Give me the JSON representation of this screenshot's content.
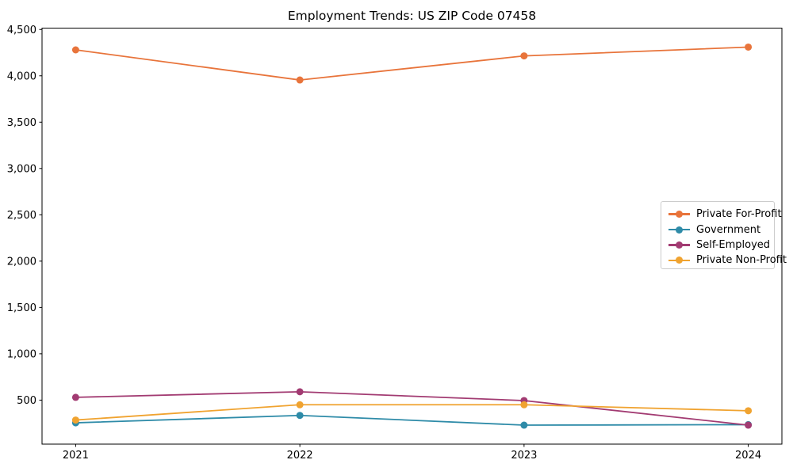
{
  "chart_data": {
    "type": "line",
    "title": "Employment Trends: US ZIP Code 07458",
    "categories": [
      "2021",
      "2022",
      "2023",
      "2024"
    ],
    "x": [
      2021,
      2022,
      2023,
      2024
    ],
    "series": [
      {
        "name": "Private For-Profit",
        "color": "#E8743B",
        "values": [
          4280,
          3955,
          4215,
          4310
        ]
      },
      {
        "name": "Government",
        "color": "#2E8BA8",
        "values": [
          255,
          335,
          230,
          235
        ]
      },
      {
        "name": "Self-Employed",
        "color": "#A23B72",
        "values": [
          530,
          590,
          495,
          230
        ]
      },
      {
        "name": "Private Non-Profit",
        "color": "#F0A330",
        "values": [
          285,
          450,
          450,
          385
        ]
      }
    ],
    "xlabel": "",
    "ylabel": "",
    "yticks": [
      500,
      1000,
      1500,
      2000,
      2500,
      3000,
      3500,
      4000,
      4500
    ],
    "ytick_labels": [
      "500",
      "1,000",
      "1,500",
      "2,000",
      "2,500",
      "3,000",
      "3,500",
      "4,000",
      "4,500"
    ],
    "ylim": [
      25,
      4515
    ],
    "xlim": [
      2020.85,
      2024.15
    ],
    "grid": false,
    "legend_position": "center right",
    "axis_color": "#000000",
    "background": "#ffffff",
    "marker": "circle",
    "marker_radius": 4.5,
    "line_width": 1.8
  }
}
